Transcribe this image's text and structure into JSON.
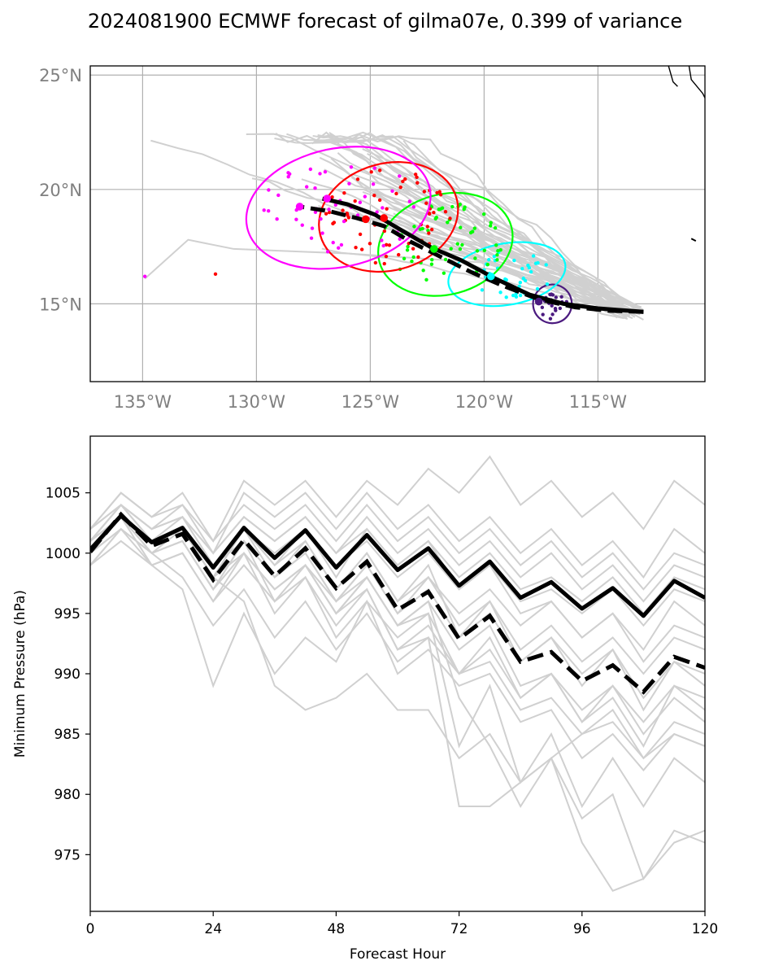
{
  "title": "2024081900 ECMWF forecast of gilma07e, 0.399 of variance",
  "colors": {
    "member": "#d0d0d0",
    "mean": "#000000",
    "day1": "#4b1a7f",
    "day2": "#00ffff",
    "day3": "#00ff00",
    "day4": "#ff0000",
    "day5": "#ff00ff",
    "grid": "#b0b0b0"
  },
  "chart_data": [
    {
      "type": "scatter",
      "kind": "track-map",
      "lon_ticks": [
        "135°W",
        "130°W",
        "125°W",
        "120°W",
        "115°W"
      ],
      "lat_ticks": [
        "15°N",
        "20°N",
        "25°N"
      ],
      "lon_range": [
        -137.3,
        -110.3
      ],
      "lat_range": [
        11.6,
        25.4
      ],
      "grid": true,
      "mean_track_solid": [
        [
          -113,
          14.65
        ],
        [
          -115,
          14.8
        ],
        [
          -116.5,
          15.0
        ],
        [
          -118,
          15.4
        ],
        [
          -119.5,
          16.1
        ],
        [
          -121,
          16.9
        ],
        [
          -122.3,
          17.45
        ],
        [
          -123.6,
          18.2
        ],
        [
          -124.8,
          18.9
        ],
        [
          -126.0,
          19.35
        ],
        [
          -127.1,
          19.6
        ]
      ],
      "mean_track_dashed": [
        [
          -113,
          14.65
        ],
        [
          -114.5,
          14.7
        ],
        [
          -116,
          14.85
        ],
        [
          -117.6,
          15.2
        ],
        [
          -119.2,
          15.8
        ],
        [
          -120.6,
          16.4
        ],
        [
          -121.9,
          17.05
        ],
        [
          -123.2,
          17.7
        ],
        [
          -124.4,
          18.4
        ],
        [
          -125.6,
          18.75
        ],
        [
          -126.8,
          19.05
        ],
        [
          -128.1,
          19.25
        ]
      ],
      "ellipses": [
        {
          "day": 1,
          "center": [
            -117.0,
            15.0
          ],
          "rx": 0.85,
          "ry": 0.85,
          "angle": -10,
          "dot_count": 22,
          "dot_spread": [
            0.6,
            0.6
          ]
        },
        {
          "day": 2,
          "center": [
            -119.0,
            16.3
          ],
          "rx": 2.6,
          "ry": 1.35,
          "angle": -10,
          "dot_count": 40,
          "dot_spread": [
            1.7,
            0.9
          ]
        },
        {
          "day": 3,
          "center": [
            -121.7,
            17.6
          ],
          "rx": 3.0,
          "ry": 2.2,
          "angle": -15,
          "dot_count": 55,
          "dot_spread": [
            2.2,
            1.6
          ]
        },
        {
          "day": 4,
          "center": [
            -124.2,
            18.8
          ],
          "rx": 3.1,
          "ry": 2.35,
          "angle": -15,
          "dot_count": 60,
          "dot_spread": [
            2.4,
            1.8
          ]
        },
        {
          "day": 5,
          "center": [
            -126.4,
            19.2
          ],
          "rx": 4.1,
          "ry": 2.6,
          "angle": -12,
          "dot_count": 50,
          "dot_spread": [
            3.1,
            1.9
          ]
        }
      ],
      "coast": [
        [
          [
            -111.0,
            25.4
          ],
          [
            -110.9,
            24.8
          ],
          [
            -110.4,
            24.2
          ],
          [
            -110.3,
            24.0
          ]
        ],
        [
          [
            -111.9,
            25.4
          ],
          [
            -111.7,
            24.7
          ],
          [
            -111.5,
            24.5
          ]
        ]
      ]
    },
    {
      "type": "line",
      "xlabel": "Forecast Hour",
      "ylabel": "Minimum Pressure (hPa)",
      "x_ticks": [
        0,
        24,
        48,
        72,
        96,
        120
      ],
      "y_ticks": [
        975,
        980,
        985,
        990,
        995,
        1000,
        1005
      ],
      "xlim": [
        0,
        120
      ],
      "ylim": [
        970.3,
        1009.7
      ],
      "x": [
        0,
        6,
        12,
        18,
        24,
        30,
        36,
        42,
        48,
        54,
        60,
        66,
        72,
        78,
        84,
        90,
        96,
        102,
        108,
        114,
        120
      ],
      "mean_solid": [
        1000.3,
        1003.1,
        1000.9,
        1002.1,
        998.8,
        1002.1,
        999.6,
        1001.9,
        998.8,
        1001.5,
        998.6,
        1000.4,
        997.3,
        999.3,
        996.3,
        997.6,
        995.4,
        997.1,
        994.8,
        997.7,
        996.3
      ],
      "mean_dashed": [
        1000.1,
        1003.2,
        1000.6,
        1001.6,
        997.8,
        1001.1,
        998.1,
        1000.4,
        997.1,
        999.3,
        995.3,
        996.8,
        992.9,
        994.8,
        991.0,
        991.8,
        989.4,
        990.7,
        988.5,
        991.4,
        990.5
      ],
      "members": [
        [
          1001,
          1004,
          1002,
          1003,
          1000,
          1003,
          1001,
          1003,
          1000,
          1002,
          999,
          1001,
          998,
          1000,
          997,
          998,
          996,
          998,
          995,
          998,
          997
        ],
        [
          1000,
          1003,
          1001,
          1002,
          999,
          1002,
          1000,
          1002,
          999,
          1001,
          998,
          1000,
          997,
          999,
          996,
          997,
          995,
          997,
          994,
          997,
          996
        ],
        [
          1002,
          1005,
          1003,
          1005,
          1001,
          1006,
          1004,
          1006,
          1003,
          1006,
          1004,
          1007,
          1005,
          1008,
          1004,
          1006,
          1003,
          1005,
          1002,
          1006,
          1004
        ],
        [
          999,
          1002,
          1000,
          1001,
          997,
          1001,
          998,
          1000,
          996,
          999,
          995,
          998,
          994,
          996,
          992,
          994,
          991,
          993,
          990,
          993,
          992
        ],
        [
          1001,
          1004,
          1002,
          1003,
          999,
          1002,
          998,
          1001,
          997,
          1000,
          996,
          998,
          995,
          997,
          994,
          996,
          993,
          995,
          992,
          996,
          994
        ],
        [
          1002,
          1004,
          1001,
          1002,
          998,
          1000,
          995,
          998,
          994,
          997,
          992,
          994,
          990,
          992,
          988,
          990,
          986,
          988,
          984,
          989,
          987
        ],
        [
          1000,
          1003,
          999,
          997,
          989,
          995,
          990,
          993,
          991,
          996,
          990,
          992,
          989,
          990,
          986,
          987,
          983,
          985,
          982,
          985,
          984
        ],
        [
          1001,
          1003,
          1000,
          998,
          994,
          997,
          993,
          996,
          992,
          995,
          991,
          993,
          990,
          991,
          987,
          988,
          985,
          987,
          983,
          986,
          985
        ],
        [
          1000,
          1003,
          1000,
          1002,
          998,
          996,
          989,
          987,
          988,
          990,
          987,
          987,
          983,
          985,
          981,
          983,
          976,
          972,
          973,
          977,
          976
        ],
        [
          1001,
          1004,
          1001,
          1003,
          999,
          1001,
          996,
          999,
          995,
          998,
          994,
          996,
          988,
          984,
          979,
          983,
          978,
          980,
          973,
          976,
          977
        ],
        [
          1000,
          1002,
          999,
          1000,
          996,
          1000,
          997,
          999,
          995,
          998,
          994,
          995,
          984,
          989,
          981,
          985,
          979,
          983,
          979,
          983,
          981
        ],
        [
          1002,
          1004,
          1002,
          1004,
          1001,
          1004,
          1002,
          1004,
          1001,
          1004,
          1001,
          1003,
          1000,
          1002,
          999,
          1001,
          998,
          1000,
          997,
          1000,
          999
        ],
        [
          1001,
          1003,
          1001,
          1002,
          998,
          1002,
          999,
          1001,
          997,
          1000,
          996,
          999,
          993,
          996,
          991,
          993,
          989,
          992,
          987,
          991,
          989
        ],
        [
          999,
          1001,
          999,
          1000,
          996,
          999,
          996,
          998,
          993,
          996,
          993,
          995,
          990,
          993,
          988,
          990,
          986,
          989,
          985,
          988,
          986
        ],
        [
          1002,
          1005,
          1003,
          1004,
          1000,
          1005,
          1003,
          1005,
          1002,
          1005,
          1002,
          1004,
          1001,
          1003,
          1000,
          1002,
          999,
          1001,
          998,
          1002,
          1000
        ],
        [
          1000,
          1003,
          1001,
          1002,
          998,
          1002,
          999,
          1002,
          998,
          1002,
          999,
          1001,
          997,
          999,
          995,
          996,
          993,
          995,
          991,
          994,
          993
        ],
        [
          1000,
          1002,
          1000,
          1001,
          997,
          1000,
          997,
          999,
          995,
          997,
          992,
          993,
          979,
          979,
          981,
          983,
          985,
          986,
          983,
          985,
          984
        ],
        [
          1001,
          1004,
          1002,
          1003,
          1000,
          1003,
          1001,
          1003,
          1000,
          1003,
          1000,
          1002,
          999,
          1001,
          998,
          1000,
          997,
          999,
          996,
          999,
          998
        ],
        [
          999,
          1002,
          1000,
          1001,
          997,
          1000,
          997,
          999,
          996,
          999,
          995,
          997,
          993,
          995,
          991,
          993,
          990,
          992,
          988,
          991,
          990
        ],
        [
          1001,
          1003,
          1000,
          1001,
          997,
          1001,
          998,
          1000,
          996,
          998,
          994,
          996,
          992,
          994,
          989,
          990,
          987,
          989,
          986,
          989,
          988
        ]
      ]
    }
  ]
}
